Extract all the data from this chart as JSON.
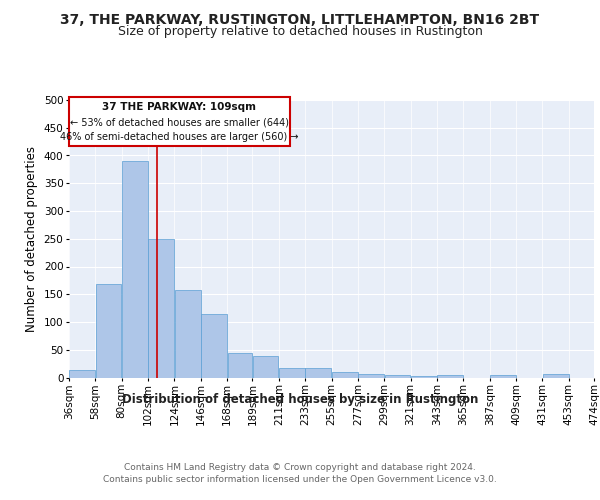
{
  "title": "37, THE PARKWAY, RUSTINGTON, LITTLEHAMPTON, BN16 2BT",
  "subtitle": "Size of property relative to detached houses in Rustington",
  "xlabel": "Distribution of detached houses by size in Rustington",
  "ylabel": "Number of detached properties",
  "footer_line1": "Contains HM Land Registry data © Crown copyright and database right 2024.",
  "footer_line2": "Contains public sector information licensed under the Open Government Licence v3.0.",
  "annotation_line1": "37 THE PARKWAY: 109sqm",
  "annotation_line2": "← 53% of detached houses are smaller (644)",
  "annotation_line3": "46% of semi-detached houses are larger (560) →",
  "property_size": 109,
  "bar_left_edges": [
    36,
    58,
    80,
    102,
    124,
    146,
    168,
    189,
    211,
    233,
    255,
    277,
    299,
    321,
    343,
    365,
    387,
    409,
    431,
    453
  ],
  "bar_widths": [
    22,
    22,
    22,
    22,
    22,
    22,
    21,
    22,
    22,
    22,
    22,
    22,
    22,
    22,
    22,
    22,
    22,
    22,
    22,
    21
  ],
  "bar_heights": [
    13,
    168,
    390,
    249,
    157,
    115,
    45,
    39,
    18,
    17,
    10,
    7,
    5,
    2,
    5,
    0,
    5,
    0,
    6,
    0
  ],
  "bar_color": "#aec6e8",
  "bar_edge_color": "#5a9fd4",
  "vline_color": "#cc0000",
  "vline_x": 109,
  "bg_color": "#e8eef8",
  "grid_color": "#ffffff",
  "annotation_box_color": "#cc0000",
  "title_fontsize": 10,
  "subtitle_fontsize": 9,
  "ylabel_fontsize": 8.5,
  "xlabel_fontsize": 8.5,
  "tick_fontsize": 7.5,
  "ylim": [
    0,
    500
  ],
  "yticks": [
    0,
    50,
    100,
    150,
    200,
    250,
    300,
    350,
    400,
    450,
    500
  ],
  "x_tick_labels": [
    "36sqm",
    "58sqm",
    "80sqm",
    "102sqm",
    "124sqm",
    "146sqm",
    "168sqm",
    "189sqm",
    "211sqm",
    "233sqm",
    "255sqm",
    "277sqm",
    "299sqm",
    "321sqm",
    "343sqm",
    "365sqm",
    "387sqm",
    "409sqm",
    "431sqm",
    "453sqm",
    "474sqm"
  ]
}
